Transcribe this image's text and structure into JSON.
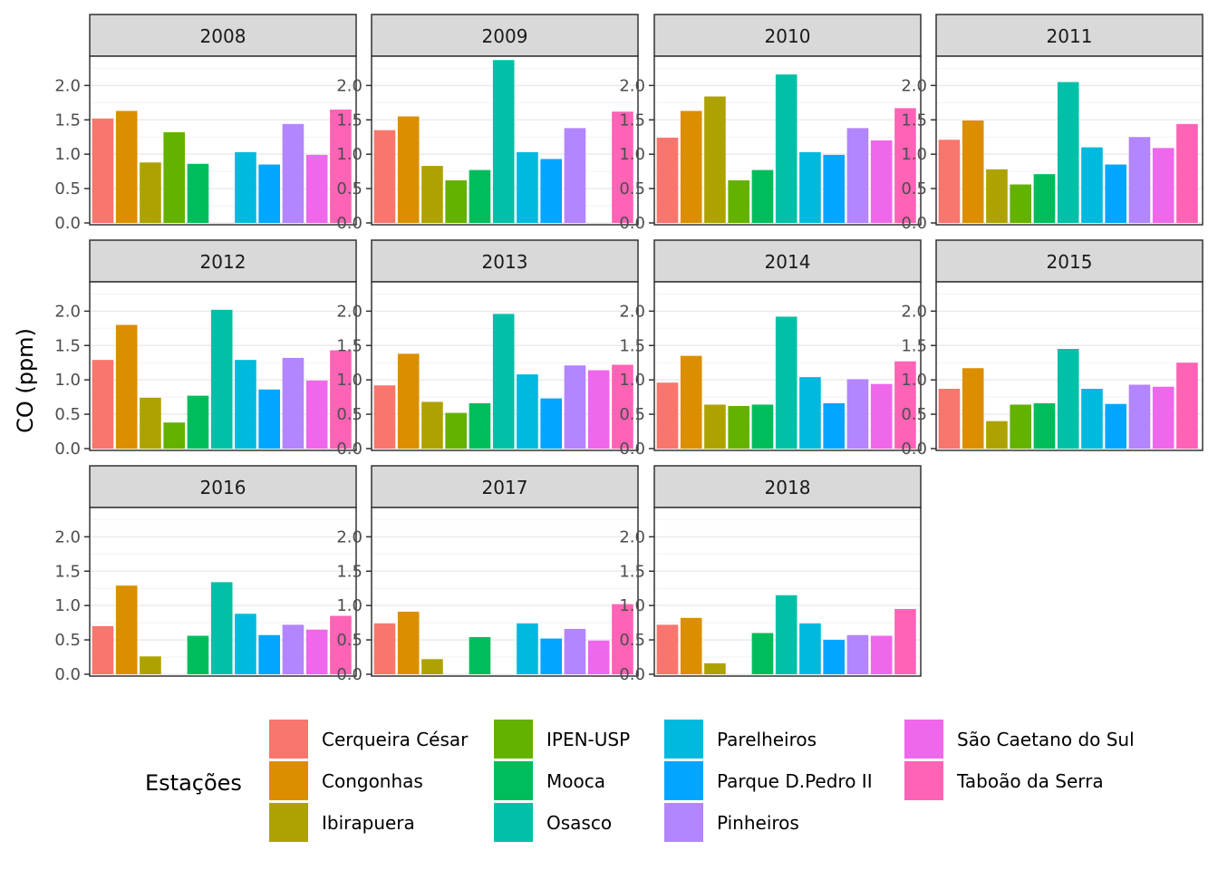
{
  "chart_data": {
    "type": "bar",
    "facet_by": "year",
    "ylabel": "CO (ppm)",
    "ylim": [
      0,
      2.4
    ],
    "yticks": [
      "0.0",
      "0.5",
      "1.0",
      "1.5",
      "2.0"
    ],
    "ytick_values": [
      0,
      0.5,
      1.0,
      1.5,
      2.0
    ],
    "grid": true,
    "legend_title": "Estações",
    "legend_position": "bottom",
    "stations": [
      {
        "name": "Cerqueira César",
        "color": "#F8766D"
      },
      {
        "name": "Congonhas",
        "color": "#DB8E00"
      },
      {
        "name": "Ibirapuera",
        "color": "#AEA200"
      },
      {
        "name": "IPEN-USP",
        "color": "#64B200"
      },
      {
        "name": "Mooca",
        "color": "#00BD5C"
      },
      {
        "name": "Osasco",
        "color": "#00C1A7"
      },
      {
        "name": "Parelheiros",
        "color": "#00BADE"
      },
      {
        "name": "Parque D.Pedro II",
        "color": "#00A6FF"
      },
      {
        "name": "Pinheiros",
        "color": "#B385FF"
      },
      {
        "name": "São Caetano do Sul",
        "color": "#EF67EB"
      },
      {
        "name": "Taboão da Serra",
        "color": "#FF63B6"
      }
    ],
    "panels": [
      {
        "year": "2008",
        "values": [
          1.52,
          1.63,
          0.88,
          1.32,
          0.86,
          null,
          1.03,
          0.85,
          1.44,
          0.99,
          1.65
        ]
      },
      {
        "year": "2009",
        "values": [
          1.35,
          1.55,
          0.83,
          0.62,
          0.77,
          2.37,
          1.03,
          0.93,
          1.38,
          null,
          1.62
        ]
      },
      {
        "year": "2010",
        "values": [
          1.24,
          1.63,
          1.84,
          0.62,
          0.77,
          2.16,
          1.03,
          0.99,
          1.38,
          1.2,
          1.67
        ]
      },
      {
        "year": "2011",
        "values": [
          1.21,
          1.49,
          0.78,
          0.56,
          0.71,
          2.05,
          1.1,
          0.85,
          1.25,
          1.09,
          1.44
        ]
      },
      {
        "year": "2012",
        "values": [
          1.29,
          1.8,
          0.74,
          0.38,
          0.77,
          2.02,
          1.29,
          0.86,
          1.32,
          0.99,
          1.43
        ]
      },
      {
        "year": "2013",
        "values": [
          0.92,
          1.38,
          0.68,
          0.52,
          0.66,
          1.96,
          1.08,
          0.73,
          1.21,
          1.14,
          1.22
        ]
      },
      {
        "year": "2014",
        "values": [
          0.96,
          1.35,
          0.64,
          0.62,
          0.64,
          1.92,
          1.04,
          0.66,
          1.01,
          0.94,
          1.27
        ]
      },
      {
        "year": "2015",
        "values": [
          0.87,
          1.17,
          0.4,
          0.64,
          0.66,
          1.45,
          0.87,
          0.65,
          0.93,
          0.9,
          1.25
        ]
      },
      {
        "year": "2016",
        "values": [
          0.7,
          1.29,
          0.26,
          null,
          0.56,
          1.34,
          0.88,
          0.57,
          0.72,
          0.65,
          0.85
        ]
      },
      {
        "year": "2017",
        "values": [
          0.74,
          0.91,
          0.22,
          null,
          0.54,
          null,
          0.74,
          0.52,
          0.66,
          0.49,
          1.02
        ]
      },
      {
        "year": "2018",
        "values": [
          0.72,
          0.82,
          0.16,
          null,
          0.6,
          1.15,
          0.74,
          0.5,
          0.57,
          0.56,
          0.95
        ]
      }
    ]
  }
}
